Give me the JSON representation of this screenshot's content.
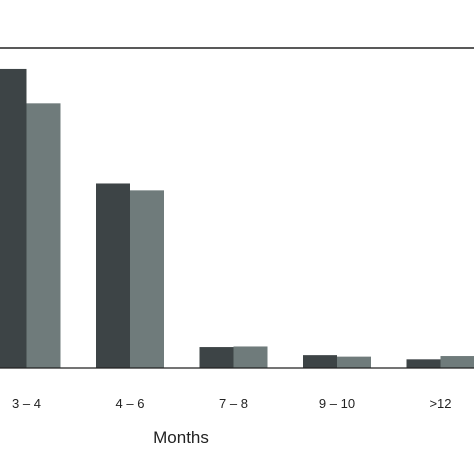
{
  "chart_data": {
    "type": "bar",
    "title": "",
    "xlabel": "Months",
    "ylabel": "",
    "categories": [
      "3 – 4",
      "4 – 6",
      "7 – 8",
      "9 – 10",
      ">12"
    ],
    "series": [
      {
        "values": [
          100,
          61.7,
          7.0,
          4.3,
          2.9
        ],
        "color": "#3d4446"
      },
      {
        "values": [
          88.5,
          59.4,
          7.2,
          3.8,
          4.0
        ],
        "color": "#6f7b7b"
      }
    ],
    "ylim": [
      0,
      107
    ],
    "grid": false,
    "legend": "none"
  }
}
